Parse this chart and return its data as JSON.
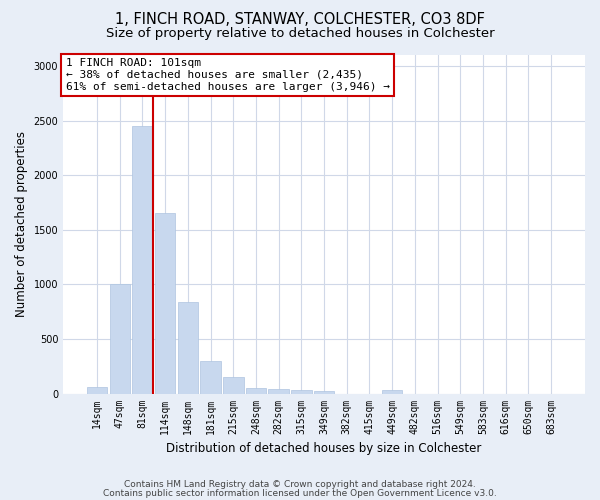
{
  "title1": "1, FINCH ROAD, STANWAY, COLCHESTER, CO3 8DF",
  "title2": "Size of property relative to detached houses in Colchester",
  "xlabel": "Distribution of detached houses by size in Colchester",
  "ylabel": "Number of detached properties",
  "categories": [
    "14sqm",
    "47sqm",
    "81sqm",
    "114sqm",
    "148sqm",
    "181sqm",
    "215sqm",
    "248sqm",
    "282sqm",
    "315sqm",
    "349sqm",
    "382sqm",
    "415sqm",
    "449sqm",
    "482sqm",
    "516sqm",
    "549sqm",
    "583sqm",
    "616sqm",
    "650sqm",
    "683sqm"
  ],
  "values": [
    60,
    1000,
    2450,
    1650,
    840,
    300,
    150,
    55,
    40,
    30,
    20,
    0,
    0,
    30,
    0,
    0,
    0,
    0,
    0,
    0,
    0
  ],
  "bar_color": "#c8d8ee",
  "bar_edge_color": "#aec4e0",
  "vline_color": "#cc0000",
  "vline_x_index": 2,
  "annotation_text": "1 FINCH ROAD: 101sqm\n← 38% of detached houses are smaller (2,435)\n61% of semi-detached houses are larger (3,946) →",
  "annotation_box_facecolor": "#ffffff",
  "annotation_box_edgecolor": "#cc0000",
  "ylim": [
    0,
    3100
  ],
  "yticks": [
    0,
    500,
    1000,
    1500,
    2000,
    2500,
    3000
  ],
  "footer1": "Contains HM Land Registry data © Crown copyright and database right 2024.",
  "footer2": "Contains public sector information licensed under the Open Government Licence v3.0.",
  "fig_bg_color": "#e8eef7",
  "plot_bg_color": "#ffffff",
  "grid_color": "#d0d8e8",
  "title1_fontsize": 10.5,
  "title2_fontsize": 9.5,
  "xlabel_fontsize": 8.5,
  "ylabel_fontsize": 8.5,
  "tick_fontsize": 7,
  "annotation_fontsize": 8,
  "footer_fontsize": 6.5
}
